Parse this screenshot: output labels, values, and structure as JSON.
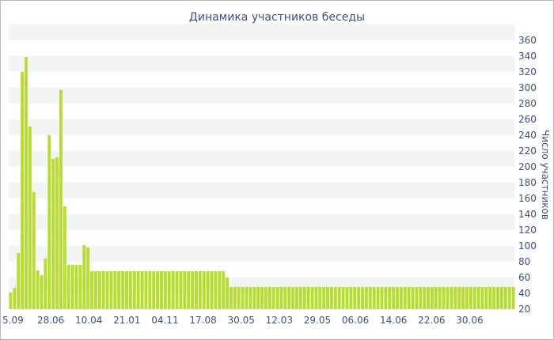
{
  "chart_data": {
    "type": "bar",
    "title": "Динамика участников беседы",
    "xlabel": "",
    "ylabel": "Число участников",
    "ylim": [
      20,
      360
    ],
    "yticks": [
      20,
      40,
      60,
      80,
      100,
      120,
      140,
      160,
      180,
      200,
      220,
      240,
      260,
      280,
      300,
      320,
      340,
      360
    ],
    "x_tick_labels": [
      "5.09",
      "28.06",
      "10.04",
      "21.01",
      "04.11",
      "17.08",
      "30.05",
      "12.03",
      "29.05",
      "06.06",
      "14.06",
      "22.06",
      "30.06"
    ],
    "grid": "horizontal bands",
    "y_axis_position": "right",
    "bar_color": "#b5de2f",
    "values": [
      41,
      47,
      91,
      320,
      339,
      251,
      168,
      69,
      63,
      84,
      240,
      210,
      212,
      297,
      150,
      76,
      76,
      76,
      76,
      101,
      98,
      68,
      68,
      68,
      68,
      68,
      68,
      68,
      68,
      68,
      68,
      68,
      68,
      68,
      68,
      68,
      68,
      68,
      68,
      68,
      68,
      68,
      68,
      68,
      68,
      68,
      68,
      68,
      68,
      68,
      68,
      68,
      68,
      68,
      68,
      68,
      60,
      48,
      48,
      48,
      48,
      48,
      48,
      48,
      48,
      48,
      48,
      48,
      48,
      48,
      48,
      48,
      48,
      48,
      48,
      48,
      48,
      48,
      48,
      48,
      48,
      48,
      48,
      48,
      48,
      48,
      48,
      48,
      48,
      48,
      48,
      48,
      48,
      48,
      48,
      48,
      48,
      48,
      48,
      48,
      48,
      48,
      48,
      48,
      48,
      48,
      48,
      48,
      48,
      48,
      48,
      48,
      48,
      48,
      48,
      48,
      48,
      48,
      48,
      48,
      48,
      48,
      48,
      48,
      48,
      48,
      48,
      48,
      48,
      48,
      48
    ]
  }
}
